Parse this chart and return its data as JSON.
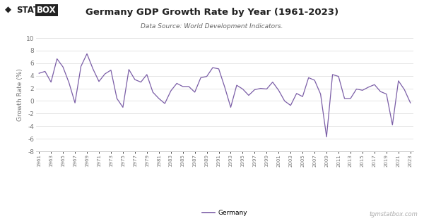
{
  "title": "Germany GDP Growth Rate by Year (1961-2023)",
  "subtitle": "Data Source: World Development Indicators.",
  "ylabel": "Growth Rate (%)",
  "line_color": "#7b5ea7",
  "background_color": "#ffffff",
  "grid_color": "#e0e0e0",
  "ylim": [
    -8,
    10
  ],
  "yticks": [
    -8,
    -6,
    -4,
    -2,
    0,
    2,
    4,
    6,
    8,
    10
  ],
  "legend_label": "Germany",
  "watermark": "tgmstatbox.com",
  "years": [
    1961,
    1962,
    1963,
    1964,
    1965,
    1966,
    1967,
    1968,
    1969,
    1970,
    1971,
    1972,
    1973,
    1974,
    1975,
    1976,
    1977,
    1978,
    1979,
    1980,
    1981,
    1982,
    1983,
    1984,
    1985,
    1986,
    1987,
    1988,
    1989,
    1990,
    1991,
    1992,
    1993,
    1994,
    1995,
    1996,
    1997,
    1998,
    1999,
    2000,
    2001,
    2002,
    2003,
    2004,
    2005,
    2006,
    2007,
    2008,
    2009,
    2010,
    2011,
    2012,
    2013,
    2014,
    2015,
    2016,
    2017,
    2018,
    2019,
    2020,
    2021,
    2022,
    2023
  ],
  "values": [
    4.4,
    4.7,
    3.0,
    6.7,
    5.4,
    2.9,
    -0.3,
    5.5,
    7.5,
    5.1,
    3.1,
    4.3,
    4.9,
    0.4,
    -1.0,
    5.0,
    3.4,
    3.0,
    4.2,
    1.4,
    0.4,
    -0.4,
    1.6,
    2.8,
    2.3,
    2.3,
    1.4,
    3.7,
    3.9,
    5.3,
    5.1,
    2.2,
    -1.0,
    2.5,
    1.9,
    0.9,
    1.8,
    2.0,
    1.9,
    3.0,
    1.7,
    0.0,
    -0.7,
    1.2,
    0.7,
    3.7,
    3.3,
    1.1,
    -5.7,
    4.2,
    3.9,
    0.4,
    0.4,
    1.9,
    1.7,
    2.2,
    2.6,
    1.5,
    1.1,
    -3.8,
    3.2,
    1.8,
    -0.3
  ],
  "logo_diamond": "◆",
  "logo_stat": "STAT",
  "logo_box": "BOX",
  "logo_box_bg": "#222222",
  "logo_text_color": "#222222"
}
